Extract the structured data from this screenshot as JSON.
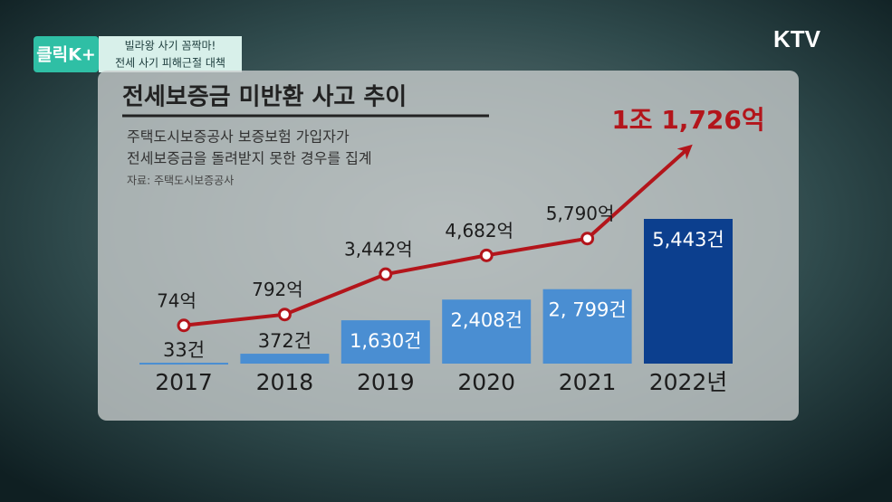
{
  "banner": {
    "logo": "클릭K+",
    "line1": "빌라왕 사기 꼼짝마!",
    "line2": "전세 사기 피해근절 대책"
  },
  "channel": "KTV",
  "chart_data": {
    "type": "bar",
    "title": "전세보증금 미반환 사고 추이",
    "subtitle": [
      "주택도시보증공사 보증보험 가입자가",
      "전세보증금을 돌려받지 못한 경우를 집계"
    ],
    "source": "자료: 주택도시보증공사",
    "categories": [
      "2017",
      "2018",
      "2019",
      "2020",
      "2021",
      "2022년"
    ],
    "series": [
      {
        "type": "bar",
        "colors": [
          "#4a8ed2",
          "#4a8ed2",
          "#4a8ed2",
          "#4a8ed2",
          "#4a8ed2",
          "#0c3f8e"
        ],
        "values": [
          33,
          372,
          1630,
          2408,
          2799,
          5443
        ],
        "value_labels": [
          "33건",
          "372건",
          "1,630건",
          "2,408건",
          "2, 799건",
          "5,443건"
        ]
      },
      {
        "type": "line",
        "color": "#b3151b",
        "values": [
          74,
          792,
          3442,
          4682,
          5790,
          11726
        ],
        "value_labels": [
          "74억",
          "792억",
          "3,442억",
          "4,682억",
          "5,790억",
          "1조 1,726억"
        ]
      }
    ]
  }
}
